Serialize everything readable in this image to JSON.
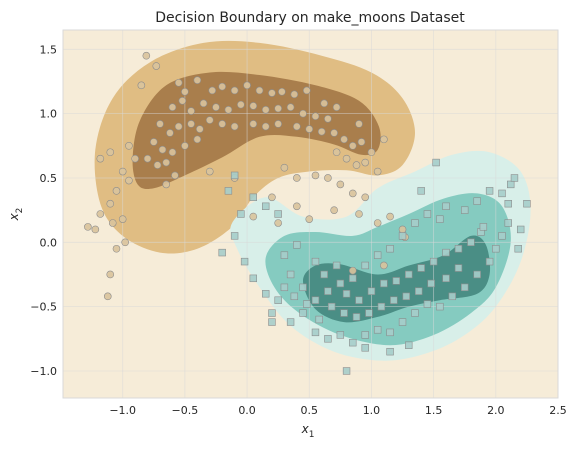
{
  "chart_data": {
    "type": "scatter",
    "title": "Decision Boundary on make_moons Dataset",
    "xlabel_main": "x",
    "xlabel_sub": "1",
    "ylabel_main": "x",
    "ylabel_sub": "2",
    "xlim": [
      -1.48,
      2.5
    ],
    "ylim": [
      -1.21,
      1.65
    ],
    "xticks": [
      -1.0,
      -0.5,
      0.0,
      0.5,
      1.0,
      1.5,
      2.0,
      2.5
    ],
    "xtick_labels": [
      "−1.0",
      "−0.5",
      "0.0",
      "0.5",
      "1.0",
      "1.5",
      "2.0",
      "2.5"
    ],
    "yticks": [
      -1.0,
      -0.5,
      0.0,
      0.5,
      1.0,
      1.5
    ],
    "ytick_labels": [
      "−1.0",
      "−0.5",
      "0.0",
      "0.5",
      "1.0",
      "1.5"
    ],
    "grid": true,
    "colors": {
      "background": "#f6ecd8",
      "class0_outer": "#e0bd83",
      "class0_inner": "#a97e4c",
      "class1_outer": "#d8efe9",
      "class1_mid": "#85cbc0",
      "class1_inner": "#4a8e85",
      "point_class0": "#d9c39c",
      "point_class1": "#a6cdca",
      "point_edge": "#8c8c8c"
    },
    "regions": [
      {
        "name": "class0-outer",
        "points": [
          [
            -1.18,
            0.3
          ],
          [
            -1.0,
            0.05
          ],
          [
            -0.7,
            -0.08
          ],
          [
            -0.4,
            -0.05
          ],
          [
            -0.12,
            0.12
          ],
          [
            0.05,
            0.35
          ],
          [
            0.25,
            0.5
          ],
          [
            0.5,
            0.55
          ],
          [
            0.8,
            0.56
          ],
          [
            1.05,
            0.52
          ],
          [
            1.25,
            0.6
          ],
          [
            1.35,
            0.85
          ],
          [
            1.25,
            1.12
          ],
          [
            1.0,
            1.32
          ],
          [
            0.6,
            1.45
          ],
          [
            0.1,
            1.55
          ],
          [
            -0.35,
            1.55
          ],
          [
            -0.78,
            1.4
          ],
          [
            -1.08,
            1.12
          ],
          [
            -1.22,
            0.72
          ]
        ]
      },
      {
        "name": "class0-inner",
        "points": [
          [
            -0.88,
            0.45
          ],
          [
            -0.75,
            0.42
          ],
          [
            -0.5,
            0.52
          ],
          [
            -0.2,
            0.66
          ],
          [
            0.1,
            0.82
          ],
          [
            0.4,
            0.82
          ],
          [
            0.7,
            0.76
          ],
          [
            0.92,
            0.68
          ],
          [
            1.05,
            0.72
          ],
          [
            1.06,
            0.9
          ],
          [
            0.9,
            1.1
          ],
          [
            0.55,
            1.22
          ],
          [
            0.1,
            1.3
          ],
          [
            -0.3,
            1.32
          ],
          [
            -0.65,
            1.22
          ],
          [
            -0.86,
            0.95
          ],
          [
            -0.92,
            0.65
          ]
        ]
      },
      {
        "name": "class1-outer",
        "points": [
          [
            -0.12,
            0.15
          ],
          [
            0.15,
            0.35
          ],
          [
            0.45,
            0.2
          ],
          [
            0.8,
            0.2
          ],
          [
            1.05,
            0.42
          ],
          [
            1.35,
            0.55
          ],
          [
            1.65,
            0.68
          ],
          [
            1.95,
            0.7
          ],
          [
            2.2,
            0.55
          ],
          [
            2.28,
            0.25
          ],
          [
            2.2,
            -0.15
          ],
          [
            2.0,
            -0.5
          ],
          [
            1.75,
            -0.72
          ],
          [
            1.45,
            -0.86
          ],
          [
            1.1,
            -0.92
          ],
          [
            0.7,
            -0.85
          ],
          [
            0.35,
            -0.65
          ],
          [
            0.1,
            -0.35
          ],
          [
            -0.08,
            -0.05
          ]
        ]
      },
      {
        "name": "class1-mid",
        "points": [
          [
            0.15,
            -0.12
          ],
          [
            0.3,
            0.05
          ],
          [
            0.55,
            0.08
          ],
          [
            0.85,
            0.05
          ],
          [
            1.05,
            0.12
          ],
          [
            1.3,
            0.22
          ],
          [
            1.58,
            0.34
          ],
          [
            1.85,
            0.38
          ],
          [
            2.05,
            0.28
          ],
          [
            2.12,
            0.0
          ],
          [
            2.0,
            -0.35
          ],
          [
            1.8,
            -0.55
          ],
          [
            1.5,
            -0.72
          ],
          [
            1.15,
            -0.8
          ],
          [
            0.75,
            -0.72
          ],
          [
            0.42,
            -0.55
          ],
          [
            0.22,
            -0.35
          ]
        ]
      },
      {
        "name": "class1-inner",
        "points": [
          [
            0.45,
            -0.3
          ],
          [
            0.55,
            -0.18
          ],
          [
            0.75,
            -0.17
          ],
          [
            1.05,
            -0.25
          ],
          [
            1.3,
            -0.18
          ],
          [
            1.58,
            -0.1
          ],
          [
            1.8,
            0.05
          ],
          [
            1.92,
            -0.02
          ],
          [
            1.95,
            -0.25
          ],
          [
            1.85,
            -0.4
          ],
          [
            1.55,
            -0.45
          ],
          [
            1.3,
            -0.5
          ],
          [
            1.05,
            -0.58
          ],
          [
            0.78,
            -0.62
          ],
          [
            0.55,
            -0.52
          ]
        ]
      }
    ],
    "series": [
      {
        "marker": "circle",
        "points": [
          [
            -0.81,
            1.45
          ],
          [
            -0.73,
            1.37
          ],
          [
            -0.55,
            1.24
          ],
          [
            -0.4,
            1.26
          ],
          [
            -0.5,
            1.17
          ],
          [
            -0.28,
            1.18
          ],
          [
            -0.2,
            1.21
          ],
          [
            -0.1,
            1.18
          ],
          [
            0.0,
            1.22
          ],
          [
            0.1,
            1.18
          ],
          [
            0.2,
            1.16
          ],
          [
            0.28,
            1.17
          ],
          [
            0.38,
            1.15
          ],
          [
            0.48,
            1.18
          ],
          [
            -0.6,
            1.05
          ],
          [
            -0.52,
            1.1
          ],
          [
            -0.45,
            1.02
          ],
          [
            -0.35,
            1.08
          ],
          [
            -0.25,
            1.05
          ],
          [
            -0.15,
            1.03
          ],
          [
            -0.05,
            1.07
          ],
          [
            0.05,
            1.06
          ],
          [
            0.15,
            1.03
          ],
          [
            0.25,
            1.04
          ],
          [
            0.35,
            1.05
          ],
          [
            0.45,
            1.0
          ],
          [
            0.55,
            0.98
          ],
          [
            0.65,
            0.96
          ],
          [
            -0.7,
            0.92
          ],
          [
            -0.62,
            0.85
          ],
          [
            -0.55,
            0.9
          ],
          [
            -0.45,
            0.92
          ],
          [
            -0.38,
            0.88
          ],
          [
            -0.3,
            0.95
          ],
          [
            -0.2,
            0.92
          ],
          [
            -0.1,
            0.9
          ],
          [
            0.05,
            0.92
          ],
          [
            0.15,
            0.9
          ],
          [
            0.25,
            0.92
          ],
          [
            0.4,
            0.9
          ],
          [
            0.5,
            0.88
          ],
          [
            0.6,
            0.86
          ],
          [
            0.7,
            0.85
          ],
          [
            0.78,
            0.8
          ],
          [
            0.85,
            0.75
          ],
          [
            0.92,
            0.78
          ],
          [
            -0.75,
            0.78
          ],
          [
            -0.68,
            0.72
          ],
          [
            -0.6,
            0.7
          ],
          [
            -0.5,
            0.75
          ],
          [
            -0.4,
            0.8
          ],
          [
            -0.8,
            0.65
          ],
          [
            -0.72,
            0.6
          ],
          [
            -0.65,
            0.62
          ],
          [
            0.72,
            0.7
          ],
          [
            0.8,
            0.65
          ],
          [
            0.88,
            0.6
          ],
          [
            0.95,
            0.62
          ],
          [
            1.0,
            0.7
          ],
          [
            -0.95,
            0.75
          ],
          [
            -0.9,
            0.65
          ],
          [
            -1.0,
            0.55
          ],
          [
            -0.95,
            0.48
          ],
          [
            -1.05,
            0.4
          ],
          [
            -1.1,
            0.3
          ],
          [
            -1.18,
            0.22
          ],
          [
            -1.22,
            0.1
          ],
          [
            -1.28,
            0.12
          ],
          [
            -1.08,
            0.15
          ],
          [
            -1.0,
            0.18
          ],
          [
            -1.05,
            -0.05
          ],
          [
            -0.98,
            0.0
          ],
          [
            -1.1,
            -0.25
          ],
          [
            -1.12,
            -0.42
          ],
          [
            -1.18,
            0.65
          ],
          [
            -1.1,
            0.7
          ],
          [
            -0.65,
            0.45
          ],
          [
            -0.58,
            0.52
          ],
          [
            0.4,
            0.5
          ],
          [
            0.55,
            0.52
          ],
          [
            0.65,
            0.5
          ],
          [
            0.75,
            0.45
          ],
          [
            0.85,
            0.38
          ],
          [
            0.95,
            0.35
          ],
          [
            0.05,
            0.2
          ],
          [
            0.25,
            0.15
          ],
          [
            0.4,
            0.28
          ],
          [
            0.5,
            0.18
          ],
          [
            0.7,
            0.25
          ],
          [
            0.9,
            0.22
          ],
          [
            1.05,
            0.15
          ],
          [
            1.15,
            0.2
          ],
          [
            1.25,
            0.1
          ],
          [
            1.27,
            0.04
          ],
          [
            0.85,
            -0.22
          ],
          [
            1.1,
            -0.18
          ],
          [
            0.2,
            0.35
          ],
          [
            -0.3,
            0.55
          ],
          [
            -0.1,
            0.5
          ],
          [
            0.62,
            1.08
          ],
          [
            0.72,
            1.05
          ],
          [
            0.3,
            0.58
          ],
          [
            -0.85,
            1.22
          ],
          [
            0.9,
            0.92
          ],
          [
            1.05,
            0.55
          ],
          [
            1.1,
            0.8
          ]
        ]
      },
      {
        "marker": "square",
        "points": [
          [
            -0.15,
            0.4
          ],
          [
            0.05,
            0.35
          ],
          [
            0.15,
            0.28
          ],
          [
            0.25,
            0.22
          ],
          [
            -0.05,
            0.22
          ],
          [
            -0.1,
            0.05
          ],
          [
            -0.2,
            -0.08
          ],
          [
            -0.02,
            -0.15
          ],
          [
            0.05,
            -0.28
          ],
          [
            0.15,
            -0.4
          ],
          [
            0.2,
            -0.55
          ],
          [
            0.25,
            -0.45
          ],
          [
            0.35,
            -0.62
          ],
          [
            0.45,
            -0.55
          ],
          [
            0.55,
            -0.7
          ],
          [
            0.65,
            -0.75
          ],
          [
            0.75,
            -0.72
          ],
          [
            0.85,
            -0.78
          ],
          [
            0.95,
            -0.72
          ],
          [
            1.05,
            -0.68
          ],
          [
            1.15,
            -0.7
          ],
          [
            1.25,
            -0.62
          ],
          [
            1.35,
            -0.55
          ],
          [
            1.45,
            -0.48
          ],
          [
            1.55,
            -0.5
          ],
          [
            1.65,
            -0.42
          ],
          [
            1.75,
            -0.35
          ],
          [
            1.85,
            -0.25
          ],
          [
            1.95,
            -0.15
          ],
          [
            2.0,
            -0.05
          ],
          [
            2.05,
            0.05
          ],
          [
            2.1,
            0.15
          ],
          [
            2.1,
            0.3
          ],
          [
            2.12,
            0.45
          ],
          [
            2.05,
            0.38
          ],
          [
            1.95,
            0.4
          ],
          [
            1.85,
            0.32
          ],
          [
            1.75,
            0.25
          ],
          [
            1.6,
            0.28
          ],
          [
            1.55,
            0.18
          ],
          [
            1.45,
            0.22
          ],
          [
            1.35,
            0.15
          ],
          [
            1.25,
            0.05
          ],
          [
            1.15,
            -0.05
          ],
          [
            1.05,
            -0.1
          ],
          [
            0.95,
            -0.18
          ],
          [
            0.85,
            -0.28
          ],
          [
            0.75,
            -0.32
          ],
          [
            0.65,
            -0.38
          ],
          [
            0.55,
            -0.45
          ],
          [
            0.45,
            -0.35
          ],
          [
            0.35,
            -0.25
          ],
          [
            0.3,
            -0.1
          ],
          [
            0.4,
            -0.02
          ],
          [
            0.55,
            -0.15
          ],
          [
            0.62,
            -0.25
          ],
          [
            0.72,
            -0.18
          ],
          [
            0.8,
            -0.4
          ],
          [
            0.9,
            -0.45
          ],
          [
            1.0,
            -0.38
          ],
          [
            1.1,
            -0.32
          ],
          [
            1.2,
            -0.3
          ],
          [
            1.3,
            -0.25
          ],
          [
            1.4,
            -0.2
          ],
          [
            1.5,
            -0.15
          ],
          [
            1.6,
            -0.08
          ],
          [
            1.7,
            -0.05
          ],
          [
            1.8,
            0.0
          ],
          [
            1.88,
            0.08
          ],
          [
            1.7,
            -0.2
          ],
          [
            1.6,
            -0.28
          ],
          [
            1.48,
            -0.32
          ],
          [
            1.38,
            -0.38
          ],
          [
            1.28,
            -0.42
          ],
          [
            1.18,
            -0.45
          ],
          [
            1.08,
            -0.5
          ],
          [
            0.98,
            -0.55
          ],
          [
            0.88,
            -0.58
          ],
          [
            0.78,
            -0.55
          ],
          [
            0.68,
            -0.5
          ],
          [
            0.58,
            -0.6
          ],
          [
            0.48,
            -0.48
          ],
          [
            0.38,
            -0.42
          ],
          [
            0.3,
            -0.35
          ],
          [
            -0.1,
            0.52
          ],
          [
            2.2,
            0.1
          ],
          [
            2.25,
            0.3
          ],
          [
            0.8,
            -1.0
          ],
          [
            1.15,
            -0.85
          ],
          [
            1.3,
            -0.8
          ],
          [
            0.2,
            -0.62
          ],
          [
            2.15,
            0.5
          ],
          [
            1.9,
            0.12
          ],
          [
            1.4,
            0.4
          ],
          [
            1.52,
            0.62
          ],
          [
            0.95,
            -0.82
          ],
          [
            2.18,
            -0.05
          ]
        ]
      }
    ]
  }
}
